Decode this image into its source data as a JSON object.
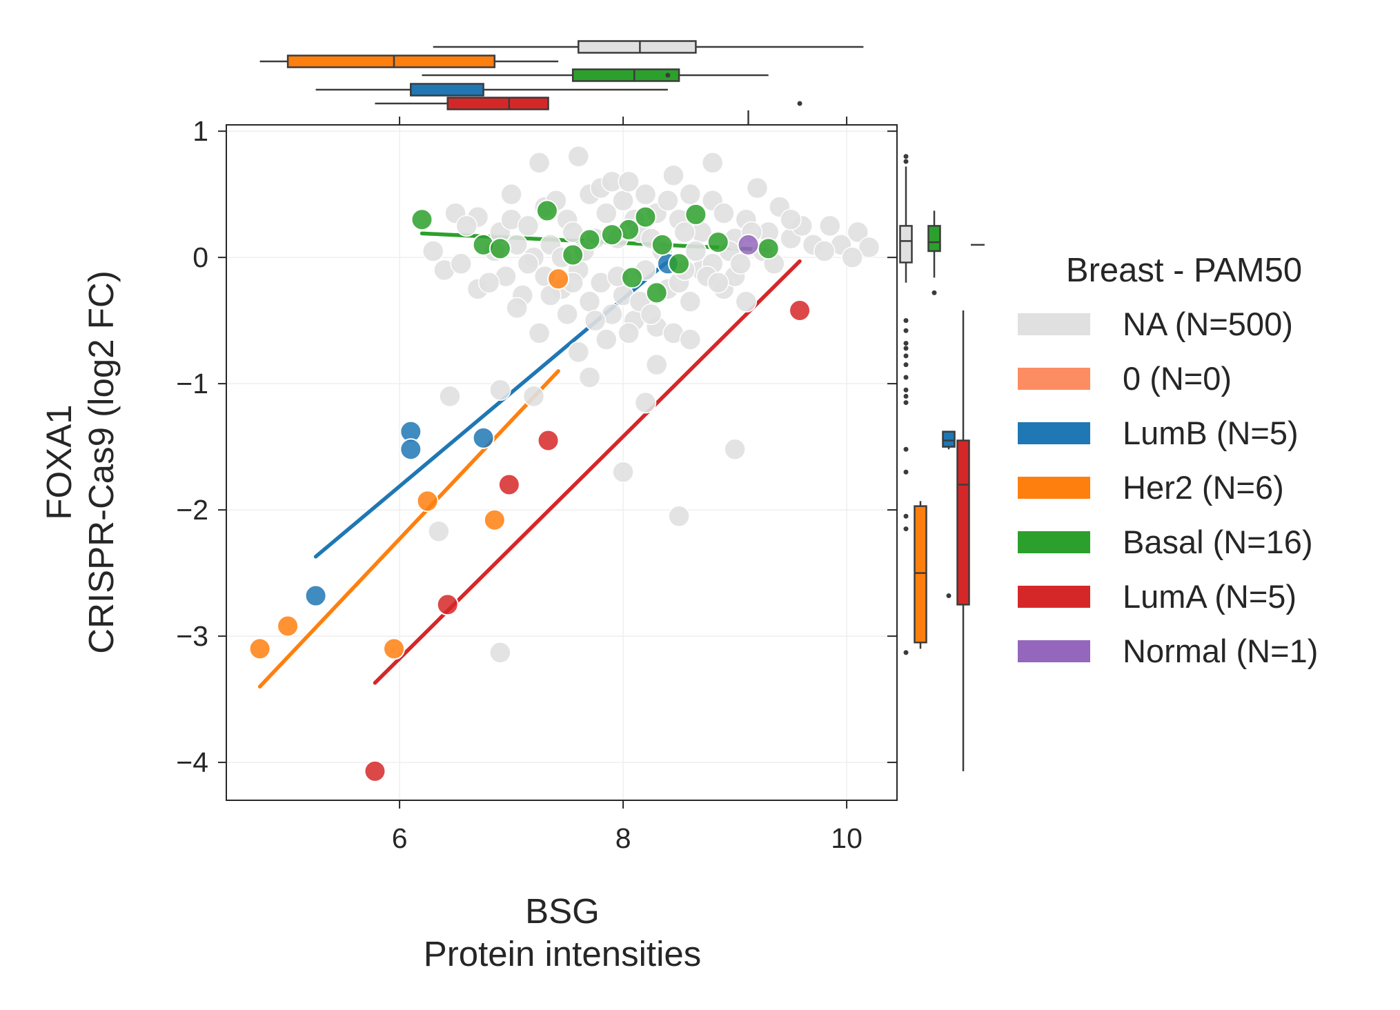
{
  "chart_data": {
    "type": "scatter",
    "xlabel_line1": "BSG",
    "xlabel_line2": "Protein intensities",
    "ylabel_line1": "FOXA1",
    "ylabel_line2": "CRISPR-Cas9 (log2 FC)",
    "xlim": [
      4.45,
      10.45
    ],
    "ylim": [
      -4.3,
      1.05
    ],
    "xticks": [
      {
        "value": 6,
        "label": "6"
      },
      {
        "value": 8,
        "label": "8"
      },
      {
        "value": 10,
        "label": "10"
      }
    ],
    "yticks": [
      {
        "value": 1,
        "label": "1"
      },
      {
        "value": 0,
        "label": "0"
      },
      {
        "value": -1,
        "label": "−1"
      },
      {
        "value": -2,
        "label": "−2"
      },
      {
        "value": -3,
        "label": "−3"
      },
      {
        "value": -4,
        "label": "−4"
      }
    ],
    "grid": true,
    "legend": {
      "title": "Breast - PAM50",
      "position": "right",
      "entries": [
        {
          "label": "NA (N=500)",
          "color": "#e0e0e0"
        },
        {
          "label": "0 (N=0)",
          "color": "#fc8d62"
        },
        {
          "label": "LumB (N=5)",
          "color": "#1f77b4"
        },
        {
          "label": "Her2 (N=6)",
          "color": "#ff7f0e"
        },
        {
          "label": "Basal (N=16)",
          "color": "#2ca02c"
        },
        {
          "label": "LumA (N=5)",
          "color": "#d62728"
        },
        {
          "label": "Normal (N=1)",
          "color": "#9467bd"
        }
      ]
    },
    "series": [
      {
        "group": "NA",
        "color": "#e0e0e0",
        "points": [
          [
            6.5,
            0.35
          ],
          [
            6.7,
            0.32
          ],
          [
            6.9,
            0.2
          ],
          [
            7.0,
            0.5
          ],
          [
            7.05,
            0.1
          ],
          [
            7.2,
            0.0
          ],
          [
            7.25,
            0.75
          ],
          [
            7.3,
            0.4
          ],
          [
            7.4,
            0.45
          ],
          [
            7.5,
            0.3
          ],
          [
            7.55,
            0.2
          ],
          [
            7.6,
            0.8
          ],
          [
            7.7,
            0.5
          ],
          [
            7.75,
            0.15
          ],
          [
            7.8,
            0.55
          ],
          [
            7.9,
            0.6
          ],
          [
            8.0,
            0.45
          ],
          [
            8.05,
            0.6
          ],
          [
            8.1,
            0.3
          ],
          [
            8.15,
            0.2
          ],
          [
            8.2,
            0.5
          ],
          [
            8.3,
            0.35
          ],
          [
            8.4,
            0.45
          ],
          [
            8.45,
            0.65
          ],
          [
            8.5,
            0.3
          ],
          [
            8.6,
            0.5
          ],
          [
            8.7,
            0.2
          ],
          [
            8.8,
            0.45
          ],
          [
            8.8,
            0.75
          ],
          [
            8.9,
            0.35
          ],
          [
            9.0,
            0.15
          ],
          [
            9.1,
            0.3
          ],
          [
            9.2,
            0.55
          ],
          [
            9.3,
            0.2
          ],
          [
            9.4,
            0.4
          ],
          [
            9.5,
            0.15
          ],
          [
            9.6,
            0.25
          ],
          [
            9.85,
            0.25
          ],
          [
            9.95,
            0.1
          ],
          [
            10.1,
            0.2
          ],
          [
            10.2,
            0.08
          ],
          [
            10.05,
            0.0
          ],
          [
            6.4,
            -0.1
          ],
          [
            6.55,
            -0.05
          ],
          [
            6.7,
            -0.25
          ],
          [
            6.85,
            0.05
          ],
          [
            6.95,
            -0.15
          ],
          [
            7.1,
            -0.3
          ],
          [
            7.15,
            -0.05
          ],
          [
            7.3,
            -0.15
          ],
          [
            7.45,
            -0.25
          ],
          [
            7.5,
            -0.45
          ],
          [
            7.6,
            -0.1
          ],
          [
            7.7,
            -0.35
          ],
          [
            7.8,
            -0.2
          ],
          [
            7.9,
            -0.45
          ],
          [
            8.0,
            -0.3
          ],
          [
            8.1,
            -0.5
          ],
          [
            8.2,
            -0.1
          ],
          [
            8.3,
            -0.55
          ],
          [
            8.4,
            -0.25
          ],
          [
            8.5,
            -0.2
          ],
          [
            8.6,
            -0.35
          ],
          [
            8.7,
            -0.1
          ],
          [
            8.8,
            -0.05
          ],
          [
            8.9,
            -0.25
          ],
          [
            9.0,
            -0.15
          ],
          [
            9.1,
            -0.35
          ],
          [
            7.25,
            -0.6
          ],
          [
            7.6,
            -0.75
          ],
          [
            7.7,
            -0.95
          ],
          [
            8.3,
            -0.85
          ],
          [
            8.45,
            -0.6
          ],
          [
            6.9,
            -1.05
          ],
          [
            6.45,
            -1.1
          ],
          [
            7.2,
            -1.1
          ],
          [
            8.2,
            -1.15
          ],
          [
            9.0,
            -1.52
          ],
          [
            8.0,
            -1.7
          ],
          [
            6.35,
            -2.17
          ],
          [
            8.5,
            -2.05
          ],
          [
            6.9,
            -3.13
          ],
          [
            6.3,
            0.05
          ],
          [
            6.6,
            0.25
          ],
          [
            7.0,
            0.3
          ],
          [
            7.15,
            0.25
          ],
          [
            7.35,
            0.1
          ],
          [
            7.45,
            0.0
          ],
          [
            7.65,
            0.05
          ],
          [
            7.85,
            0.35
          ],
          [
            7.95,
            0.15
          ],
          [
            8.25,
            0.15
          ],
          [
            8.35,
            0.05
          ],
          [
            8.55,
            0.2
          ],
          [
            8.65,
            0.05
          ],
          [
            8.75,
            -0.15
          ],
          [
            8.95,
            0.05
          ],
          [
            9.15,
            0.2
          ],
          [
            9.25,
            0.05
          ],
          [
            9.35,
            -0.05
          ],
          [
            9.5,
            0.3
          ],
          [
            9.7,
            0.1
          ],
          [
            9.8,
            0.05
          ],
          [
            6.8,
            -0.2
          ],
          [
            7.05,
            -0.4
          ],
          [
            7.35,
            -0.3
          ],
          [
            7.55,
            -0.2
          ],
          [
            7.75,
            -0.5
          ],
          [
            7.95,
            -0.15
          ],
          [
            8.05,
            -0.6
          ],
          [
            8.15,
            -0.35
          ],
          [
            8.55,
            -0.1
          ],
          [
            8.85,
            -0.2
          ],
          [
            9.05,
            -0.05
          ],
          [
            8.25,
            -0.45
          ],
          [
            8.6,
            -0.65
          ],
          [
            7.85,
            -0.65
          ]
        ]
      },
      {
        "group": "LumB",
        "color": "#1f77b4",
        "points": [
          [
            6.1,
            -1.38
          ],
          [
            6.1,
            -1.52
          ],
          [
            6.75,
            -1.43
          ],
          [
            5.25,
            -2.68
          ],
          [
            8.4,
            -0.05
          ]
        ],
        "fit": [
          [
            5.25,
            -2.37
          ],
          [
            8.4,
            -0.03
          ]
        ]
      },
      {
        "group": "Her2",
        "color": "#ff7f0e",
        "points": [
          [
            4.75,
            -3.1
          ],
          [
            5.0,
            -2.92
          ],
          [
            5.95,
            -3.1
          ],
          [
            6.25,
            -1.93
          ],
          [
            6.85,
            -2.08
          ],
          [
            7.42,
            -0.17
          ]
        ],
        "fit": [
          [
            4.75,
            -3.4
          ],
          [
            7.42,
            -0.9
          ]
        ]
      },
      {
        "group": "Basal",
        "color": "#2ca02c",
        "points": [
          [
            6.2,
            0.3
          ],
          [
            6.75,
            0.1
          ],
          [
            6.9,
            0.07
          ],
          [
            7.32,
            0.37
          ],
          [
            7.55,
            0.02
          ],
          [
            7.7,
            0.14
          ],
          [
            8.05,
            0.22
          ],
          [
            8.08,
            -0.16
          ],
          [
            8.2,
            0.32
          ],
          [
            8.3,
            -0.28
          ],
          [
            8.35,
            0.1
          ],
          [
            8.5,
            -0.05
          ],
          [
            8.65,
            0.34
          ],
          [
            8.85,
            0.12
          ],
          [
            9.3,
            0.07
          ],
          [
            7.9,
            0.18
          ]
        ],
        "fit": [
          [
            6.2,
            0.19
          ],
          [
            9.3,
            0.06
          ]
        ]
      },
      {
        "group": "LumA",
        "color": "#d62728",
        "points": [
          [
            5.78,
            -4.07
          ],
          [
            6.43,
            -2.75
          ],
          [
            6.98,
            -1.8
          ],
          [
            7.33,
            -1.45
          ],
          [
            9.58,
            -0.42
          ]
        ],
        "fit": [
          [
            5.78,
            -3.37
          ],
          [
            9.58,
            -0.03
          ]
        ]
      },
      {
        "group": "Normal",
        "color": "#9467bd",
        "points": [
          [
            9.12,
            0.1
          ]
        ]
      }
    ],
    "marginal_x_boxplots": [
      {
        "group": "NA",
        "color": "#e0e0e0",
        "whisker_low": 6.3,
        "q1": 7.6,
        "median": 8.15,
        "q3": 8.65,
        "whisker_high": 10.15,
        "outliers": []
      },
      {
        "group": "Her2",
        "color": "#ff7f0e",
        "whisker_low": 4.75,
        "q1": 5.0,
        "median": 5.95,
        "q3": 6.85,
        "whisker_high": 7.42,
        "outliers": []
      },
      {
        "group": "Basal",
        "color": "#2ca02c",
        "whisker_low": 6.2,
        "q1": 7.55,
        "median": 8.1,
        "q3": 8.5,
        "whisker_high": 9.3,
        "outliers": [
          8.4
        ]
      },
      {
        "group": "LumB",
        "color": "#1f77b4",
        "whisker_low": 5.25,
        "q1": 6.1,
        "median": 6.1,
        "q3": 6.75,
        "whisker_high": 8.4,
        "outliers": []
      },
      {
        "group": "LumA",
        "color": "#d62728",
        "whisker_low": 5.78,
        "q1": 6.43,
        "median": 6.98,
        "q3": 7.33,
        "whisker_high": 7.33,
        "outliers": [
          9.58
        ]
      },
      {
        "group": "Normal",
        "color": "#9467bd",
        "whisker_low": 9.12,
        "q1": 9.12,
        "median": 9.12,
        "q3": 9.12,
        "whisker_high": 9.12,
        "outliers": []
      }
    ],
    "marginal_y_boxplots": [
      {
        "group": "NA",
        "color": "#e0e0e0",
        "whisker_low": -0.2,
        "q1": -0.04,
        "median": 0.13,
        "q3": 0.25,
        "whisker_high": 0.72,
        "outliers": [
          0.8,
          0.76,
          -0.5,
          -0.58,
          -0.68,
          -0.72,
          -0.78,
          -0.85,
          -0.95,
          -1.05,
          -1.1,
          -1.15,
          -1.52,
          -1.7,
          -2.05,
          -2.15,
          -3.13
        ]
      },
      {
        "group": "Basal",
        "color": "#2ca02c",
        "whisker_low": -0.16,
        "q1": 0.05,
        "median": 0.12,
        "q3": 0.25,
        "whisker_high": 0.37,
        "outliers": [
          -0.28
        ]
      },
      {
        "group": "Her2",
        "color": "#ff7f0e",
        "whisker_low": -3.1,
        "q1": -3.05,
        "median": -2.5,
        "q3": -1.97,
        "whisker_high": -1.93,
        "outliers": []
      },
      {
        "group": "LumB",
        "color": "#1f77b4",
        "whisker_low": -1.52,
        "q1": -1.5,
        "median": -1.45,
        "q3": -1.38,
        "whisker_high": -1.38,
        "outliers": [
          -2.68
        ]
      },
      {
        "group": "LumA",
        "color": "#d62728",
        "whisker_low": -4.07,
        "q1": -2.75,
        "median": -1.8,
        "q3": -1.45,
        "whisker_high": -0.42,
        "outliers": []
      },
      {
        "group": "Normal",
        "color": "#9467bd",
        "whisker_low": 0.1,
        "q1": 0.1,
        "median": 0.1,
        "q3": 0.1,
        "whisker_high": 0.1,
        "outliers": []
      }
    ]
  }
}
